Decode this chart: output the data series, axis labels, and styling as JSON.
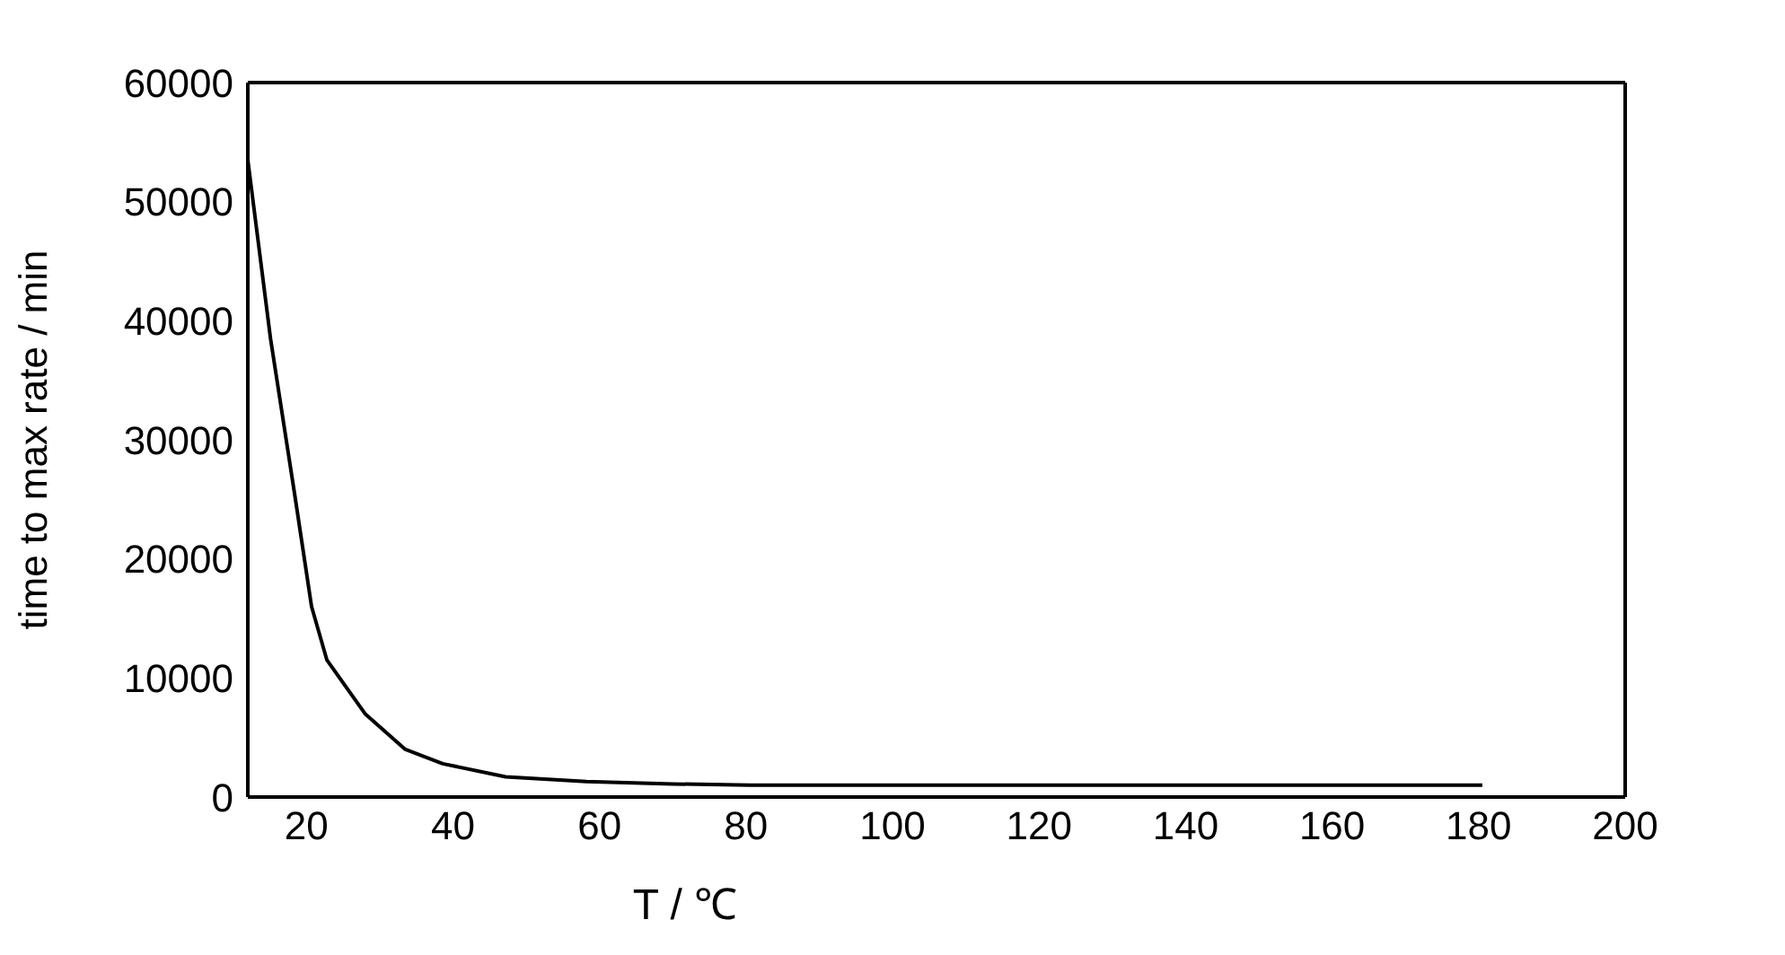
{
  "chart_data": {
    "type": "line",
    "xlabel": "T / ℃",
    "ylabel": "time to max rate / min",
    "xlim": [
      12,
      200
    ],
    "xticks": [
      20,
      40,
      60,
      80,
      100,
      120,
      140,
      160,
      180,
      200
    ],
    "ylim": [
      0,
      60000
    ],
    "yticks": [
      0,
      10000,
      20000,
      30000,
      40000,
      50000,
      60000
    ],
    "grid": false,
    "marker": "none",
    "line_style": "solid",
    "series": [
      {
        "color": "#000000",
        "x": [
          12,
          15.1,
          18.5,
          20.7,
          22.8,
          28,
          33.5,
          38.6,
          47.2,
          58.2,
          70,
          80.5,
          100,
          120,
          140,
          160,
          180.5
        ],
        "values": [
          53500,
          38500,
          25000,
          16000,
          11500,
          7000,
          4000,
          2800,
          1700,
          1300,
          1100,
          1000,
          1000,
          1000,
          1000,
          1000,
          1000
        ]
      }
    ]
  }
}
